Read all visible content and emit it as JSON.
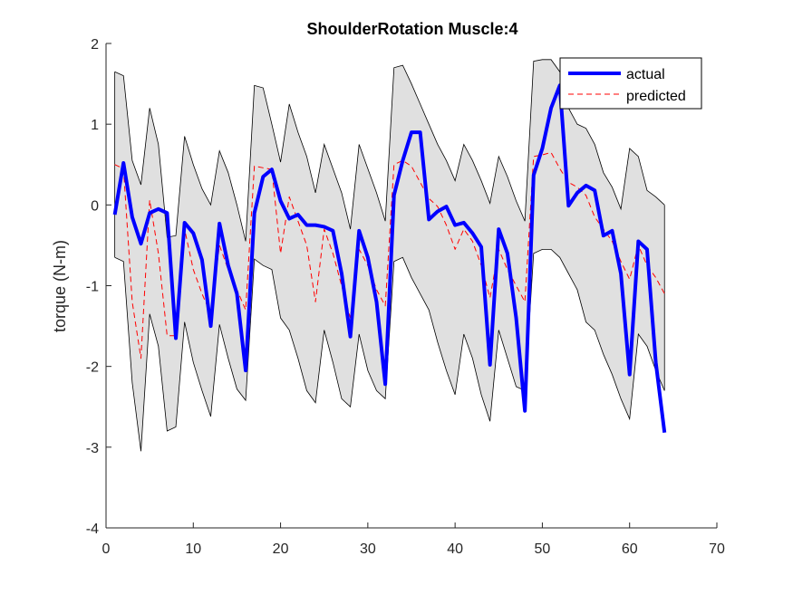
{
  "chart_data": {
    "type": "line",
    "title": "ShoulderRotation Muscle:4",
    "xlabel": "",
    "ylabel": "torque (N-m)",
    "xlim": [
      0,
      70
    ],
    "ylim": [
      -4,
      2
    ],
    "xticks": [
      "0",
      "10",
      "20",
      "30",
      "40",
      "50",
      "60",
      "70"
    ],
    "yticks": [
      "-4",
      "-3",
      "-2",
      "-1",
      "0",
      "1",
      "2"
    ],
    "grid": false,
    "legend_position": "top-right",
    "x": [
      1,
      2,
      3,
      4,
      5,
      6,
      7,
      8,
      9,
      10,
      11,
      12,
      13,
      14,
      15,
      16,
      17,
      18,
      19,
      20,
      21,
      22,
      23,
      24,
      25,
      26,
      27,
      28,
      29,
      30,
      31,
      32,
      33,
      34,
      35,
      36,
      37,
      38,
      39,
      40,
      41,
      42,
      43,
      44,
      45,
      46,
      47,
      48,
      49,
      50,
      51,
      52,
      53,
      54,
      55,
      56,
      57,
      58,
      59,
      60,
      61,
      62,
      63,
      64
    ],
    "series": [
      {
        "name": "actual",
        "color": "#0000ff",
        "style": "solid",
        "values": [
          -0.12,
          0.52,
          -0.15,
          -0.48,
          -0.1,
          -0.05,
          -0.1,
          -1.65,
          -0.22,
          -0.35,
          -0.68,
          -1.5,
          -0.23,
          -0.75,
          -1.1,
          -2.05,
          -0.1,
          0.35,
          0.44,
          0.05,
          -0.17,
          -0.12,
          -0.25,
          -0.25,
          -0.27,
          -0.32,
          -0.85,
          -1.63,
          -0.32,
          -0.65,
          -1.2,
          -2.22,
          0.12,
          0.55,
          0.9,
          0.9,
          -0.18,
          -0.08,
          -0.02,
          -0.25,
          -0.22,
          -0.35,
          -0.52,
          -1.98,
          -0.3,
          -0.6,
          -1.4,
          -2.55,
          0.37,
          0.7,
          1.2,
          1.48,
          -0.01,
          0.15,
          0.24,
          0.18,
          -0.38,
          -0.32,
          -0.85,
          -2.1,
          -0.45,
          -0.55,
          -1.95,
          -2.82
        ]
      },
      {
        "name": "predicted",
        "color": "#ff0000",
        "style": "dashed",
        "values": [
          0.5,
          0.45,
          -1.2,
          -1.9,
          0.06,
          -0.6,
          -1.62,
          -1.62,
          -0.3,
          -0.8,
          -1.1,
          -1.35,
          -0.5,
          -0.8,
          -1.05,
          -1.3,
          0.48,
          0.46,
          0.44,
          -0.6,
          0.1,
          -0.2,
          -0.5,
          -1.2,
          -0.3,
          -0.6,
          -1.0,
          -1.4,
          -0.55,
          -0.75,
          -1.05,
          -1.25,
          0.5,
          0.55,
          0.48,
          0.28,
          0.08,
          -0.02,
          -0.25,
          -0.55,
          -0.3,
          -0.45,
          -0.75,
          -1.15,
          -0.55,
          -0.8,
          -1.0,
          -1.2,
          0.6,
          0.62,
          0.65,
          0.45,
          0.28,
          0.22,
          0.12,
          -0.15,
          -0.3,
          -0.45,
          -0.7,
          -0.92,
          -0.5,
          -0.75,
          -0.9,
          -1.1
        ]
      }
    ],
    "band": {
      "upper": [
        1.65,
        1.6,
        0.55,
        0.25,
        1.2,
        0.75,
        -0.4,
        -0.38,
        0.85,
        0.5,
        0.2,
        0.0,
        0.67,
        0.4,
        0.0,
        -0.45,
        1.48,
        1.45,
        1.0,
        0.53,
        1.25,
        0.9,
        0.6,
        0.15,
        0.75,
        0.45,
        0.15,
        -0.3,
        0.75,
        0.45,
        0.15,
        -0.2,
        1.7,
        1.73,
        1.5,
        1.25,
        1.0,
        0.75,
        0.55,
        0.3,
        0.75,
        0.55,
        0.3,
        0.02,
        0.6,
        0.35,
        0.05,
        -0.2,
        1.78,
        1.8,
        1.8,
        1.65,
        1.2,
        1.0,
        0.95,
        0.75,
        0.4,
        0.22,
        -0.05,
        0.7,
        0.6,
        0.18,
        0.1,
        0.0
      ],
      "lower": [
        -0.65,
        -0.7,
        -2.2,
        -3.05,
        -1.35,
        -1.75,
        -2.8,
        -2.75,
        -1.45,
        -1.95,
        -2.3,
        -2.62,
        -1.48,
        -1.9,
        -2.28,
        -2.42,
        -0.67,
        -0.75,
        -0.8,
        -1.4,
        -1.55,
        -1.9,
        -2.3,
        -2.45,
        -1.55,
        -1.95,
        -2.4,
        -2.5,
        -1.6,
        -2.05,
        -2.3,
        -2.4,
        -0.7,
        -0.65,
        -0.9,
        -1.1,
        -1.3,
        -1.7,
        -2.05,
        -2.35,
        -1.6,
        -1.9,
        -2.35,
        -2.68,
        -1.55,
        -1.9,
        -2.25,
        -2.3,
        -0.6,
        -0.55,
        -0.55,
        -0.65,
        -0.85,
        -1.05,
        -1.45,
        -1.55,
        -1.85,
        -2.1,
        -2.4,
        -2.65,
        -1.6,
        -1.75,
        -2.05,
        -2.3
      ],
      "color": "#e0e0e0"
    }
  }
}
